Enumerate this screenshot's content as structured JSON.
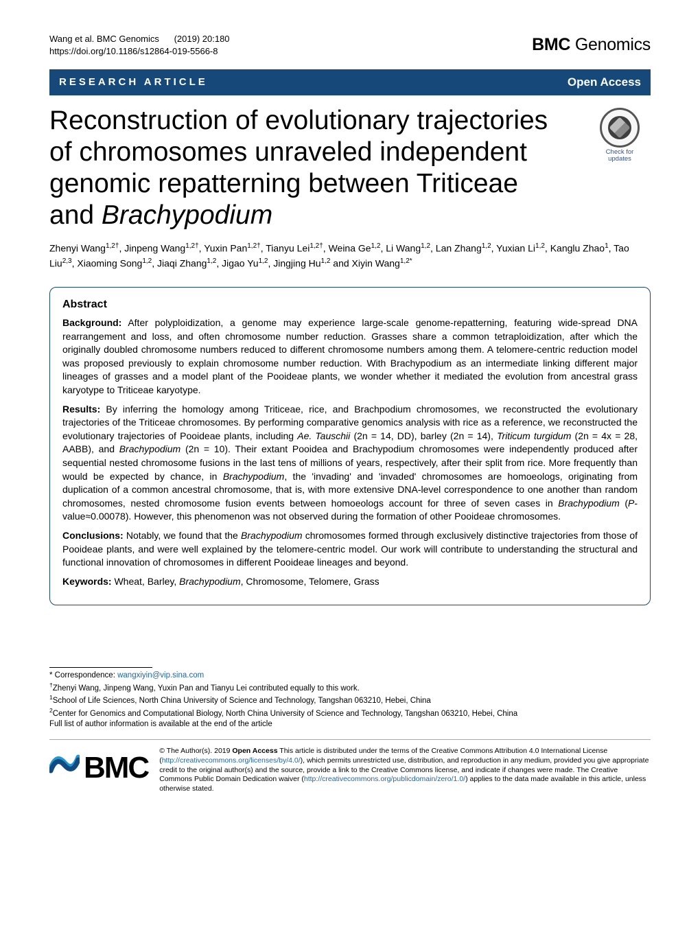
{
  "header": {
    "citation_authors": "Wang et al. BMC Genomics",
    "citation_year_issue": "(2019) 20:180",
    "doi": "https://doi.org/10.1186/s12864-019-5566-8",
    "journal_bold": "BMC",
    "journal_rest": " Genomics"
  },
  "section_bar": {
    "left": "RESEARCH ARTICLE",
    "right": "Open Access"
  },
  "title": {
    "line1": "Reconstruction of evolutionary trajectories",
    "line2": "of chromosomes unraveled independent",
    "line3": "genomic repatterning between Triticeae",
    "line4_pre": "and ",
    "line4_ital": "Brachypodium"
  },
  "badge": {
    "line1": "Check for",
    "line2": "updates"
  },
  "authors_html": "Zhenyi Wang<sup>1,2†</sup>, Jinpeng Wang<sup>1,2†</sup>, Yuxin Pan<sup>1,2†</sup>, Tianyu Lei<sup>1,2†</sup>, Weina Ge<sup>1,2</sup>, Li Wang<sup>1,2</sup>, Lan Zhang<sup>1,2</sup>, Yuxian Li<sup>1,2</sup>, Kanglu Zhao<sup>1</sup>, Tao Liu<sup>2,3</sup>, Xiaoming Song<sup>1,2</sup>, Jiaqi Zhang<sup>1,2</sup>, Jigao Yu<sup>1,2</sup>, Jingjing Hu<sup>1,2</sup> and Xiyin Wang<sup>1,2*</sup>",
  "abstract": {
    "heading": "Abstract",
    "background_label": "Background:",
    "background_text": " After polyploidization, a genome may experience large-scale genome-repatterning, featuring wide-spread DNA rearrangement and loss, and often chromosome number reduction. Grasses share a common tetraploidization, after which the originally doubled chromosome numbers reduced to different chromosome numbers among them. A telomere-centric reduction model was proposed previously to explain chromosome number reduction. With Brachypodium as an intermediate linking different major lineages of grasses and a model plant of the Pooideae plants, we wonder whether it mediated the evolution from ancestral grass karyotype to Triticeae karyotype.",
    "results_label": "Results:",
    "results_text_pre": " By inferring the homology among Triticeae, rice, and Brachpodium chromosomes, we reconstructed the evolutionary trajectories of the Triticeae chromosomes. By performing comparative genomics analysis with rice as a reference, we reconstructed the evolutionary trajectories of Pooideae plants, including ",
    "results_ital1": "Ae. Tauschii",
    "results_text_mid1": " (2n = 14, DD), barley (2n = 14), ",
    "results_ital2": "Triticum turgidum",
    "results_text_mid2": " (2n = 4x = 28, AABB), and ",
    "results_ital3": "Brachypodium",
    "results_text_mid3": " (2n = 10). Their extant Pooidea and Brachypodium chromosomes were independently produced after sequential nested chromosome fusions in the last tens of millions of years, respectively, after their split from rice. More frequently than would be expected by chance, in ",
    "results_ital4": "Brachypodium",
    "results_text_mid4": ", the 'invading' and 'invaded' chromosomes are homoeologs, originating from duplication of a common ancestral chromosome, that is, with more extensive DNA-level correspondence to one another than random chromosomes, nested chromosome fusion events between homoeologs account for three of seven cases in ",
    "results_ital5": "Brachypodium",
    "results_text_mid5": " (",
    "results_ital6": "P",
    "results_text_end": "-value≈0.00078). However, this phenomenon was not observed during the formation of other Pooideae chromosomes.",
    "conclusions_label": "Conclusions:",
    "conclusions_text_pre": " Notably, we found that the ",
    "conclusions_ital1": "Brachypodium",
    "conclusions_text_end": " chromosomes formed through exclusively distinctive trajectories from those of Pooideae plants, and were well explained by the telomere-centric model. Our work will contribute to understanding the structural and functional innovation of chromosomes in different Pooideae lineages and beyond.",
    "keywords_label": "Keywords:",
    "keywords_text_pre": " Wheat, Barley, ",
    "keywords_ital": "Brachypodium",
    "keywords_text_end": ", Chromosome, Telomere, Grass"
  },
  "footnotes": {
    "correspondence_label": "* Correspondence: ",
    "correspondence_email": "wangxiyin@vip.sina.com",
    "equal_contrib": "Zhenyi Wang, Jinpeng Wang, Yuxin Pan and Tianyu Lei contributed equally to this work.",
    "aff1": "School of Life Sciences, North China University of Science and Technology, Tangshan 063210, Hebei, China",
    "aff2": "Center for Genomics and Computational Biology, North China University of Science and Technology, Tangshan 063210, Hebei, China",
    "full_list": "Full list of author information is available at the end of the article"
  },
  "license": {
    "logo_text": "BMC",
    "text_pre": "© The Author(s). 2019 ",
    "open_access_bold": "Open Access",
    "text_mid1": " This article is distributed under the terms of the Creative Commons Attribution 4.0 International License (",
    "link1": "http://creativecommons.org/licenses/by/4.0/",
    "text_mid2": "), which permits unrestricted use, distribution, and reproduction in any medium, provided you give appropriate credit to the original author(s) and the source, provide a link to the Creative Commons license, and indicate if changes were made. The Creative Commons Public Domain Dedication waiver (",
    "link2": "http://creativecommons.org/publicdomain/zero/1.0/",
    "text_end": ") applies to the data made available in this article, unless otherwise stated."
  },
  "colors": {
    "bar_bg": "#16487a",
    "link": "#1e63b0",
    "bmc_blue": "#1f98d4",
    "bmc_navy": "#134a80"
  }
}
